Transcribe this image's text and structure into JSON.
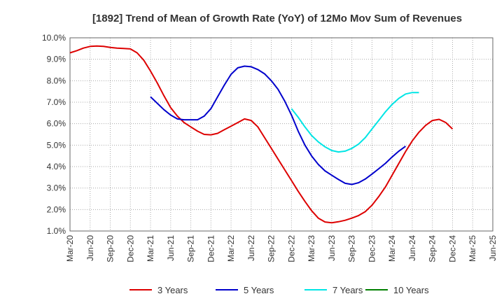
{
  "chart_data": {
    "type": "line",
    "title": "[1892]  Trend of Mean of Growth Rate (YoY) of 12Mo Mov Sum of Revenues",
    "xlabel": "",
    "ylabel": "",
    "ylim": [
      1.0,
      10.0
    ],
    "y_ticks": [
      "1.0%",
      "2.0%",
      "3.0%",
      "4.0%",
      "5.0%",
      "6.0%",
      "7.0%",
      "8.0%",
      "9.0%",
      "10.0%"
    ],
    "x_ticks": [
      "Mar-20",
      "Jun-20",
      "Sep-20",
      "Dec-20",
      "Mar-21",
      "Jun-21",
      "Sep-21",
      "Dec-21",
      "Mar-22",
      "Jun-22",
      "Sep-22",
      "Dec-22",
      "Mar-23",
      "Jun-23",
      "Sep-23",
      "Dec-23",
      "Mar-24",
      "Jun-24",
      "Sep-24",
      "Dec-24",
      "Mar-25",
      "Jun-25"
    ],
    "grid": true,
    "legend_position": "bottom",
    "series": [
      {
        "name": "3 Years",
        "color": "#dd0000",
        "start_index": 0,
        "values": [
          9.3,
          9.4,
          9.52,
          9.6,
          9.62,
          9.6,
          9.55,
          9.52,
          9.5,
          9.48,
          9.3,
          8.95,
          8.45,
          7.9,
          7.3,
          6.75,
          6.35,
          6.05,
          5.85,
          5.65,
          5.5,
          5.48,
          5.55,
          5.72,
          5.88,
          6.05,
          6.22,
          6.15,
          5.85,
          5.35,
          4.85,
          4.35,
          3.85,
          3.35,
          2.85,
          2.38,
          1.95,
          1.6,
          1.42,
          1.38,
          1.43,
          1.5,
          1.6,
          1.72,
          1.9,
          2.2,
          2.6,
          3.05,
          3.6,
          4.15,
          4.7,
          5.2,
          5.6,
          5.92,
          6.15,
          6.2,
          6.05,
          5.75
        ]
      },
      {
        "name": "5 Years",
        "color": "#0000cc",
        "start_index": 12,
        "values": [
          7.25,
          6.95,
          6.65,
          6.4,
          6.22,
          6.18,
          6.18,
          6.18,
          6.35,
          6.7,
          7.25,
          7.8,
          8.3,
          8.6,
          8.68,
          8.65,
          8.52,
          8.32,
          8.0,
          7.6,
          7.05,
          6.4,
          5.65,
          5.0,
          4.5,
          4.1,
          3.8,
          3.6,
          3.4,
          3.22,
          3.17,
          3.25,
          3.42,
          3.65,
          3.9,
          4.15,
          4.45,
          4.72,
          4.95
        ]
      },
      {
        "name": "7 Years",
        "color": "#00e5e5",
        "start_index": 33,
        "values": [
          6.7,
          6.3,
          5.85,
          5.45,
          5.15,
          4.92,
          4.75,
          4.68,
          4.72,
          4.85,
          5.05,
          5.35,
          5.75,
          6.15,
          6.55,
          6.9,
          7.18,
          7.38,
          7.45,
          7.45
        ]
      },
      {
        "name": "10 Years",
        "color": "#008000",
        "start_index": 0,
        "values": []
      }
    ]
  }
}
